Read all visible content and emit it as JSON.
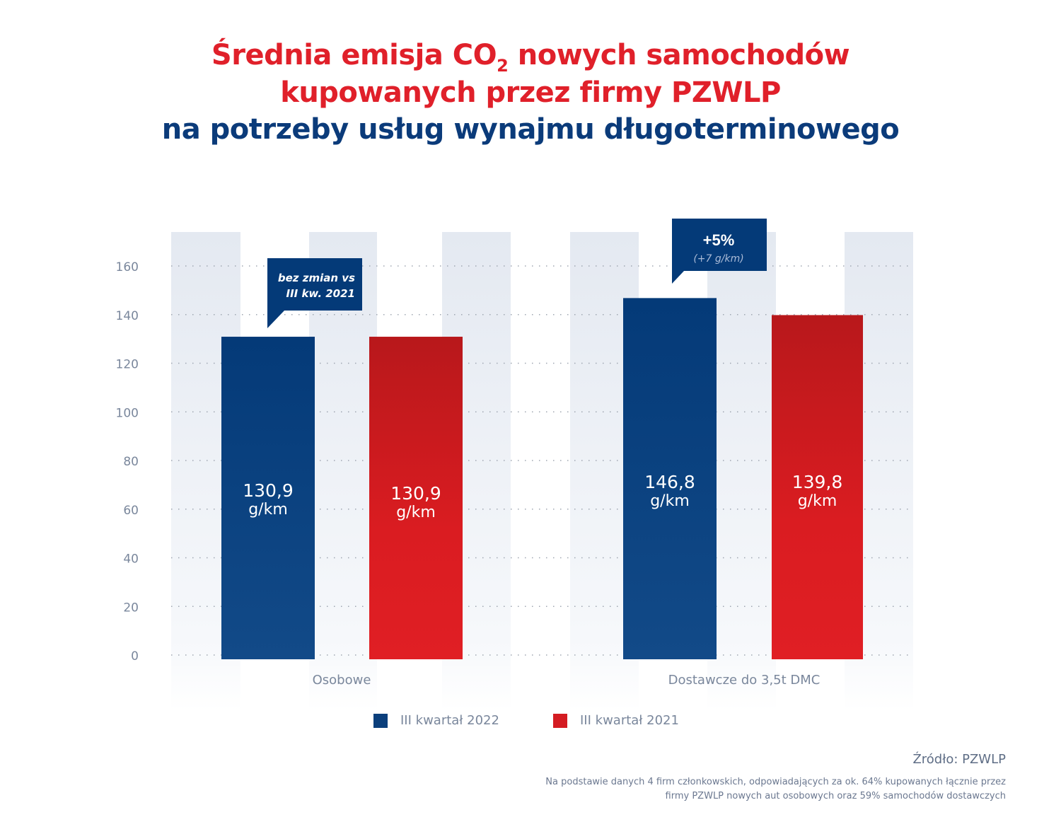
{
  "title": {
    "line1_before": "Średnia emisja CO",
    "line1_sub": "2",
    "line1_after": " nowych samochodów",
    "line2": "kupowanych przez firmy PZWLP",
    "line3": "na potrzeby usług wynajmu długoterminowego"
  },
  "colors": {
    "title_red": "#e0202a",
    "title_blue": "#0b3b7a",
    "series_2022": "#0b3f7c",
    "series_2021": "#d41c22",
    "stripe": "#e4e9f1",
    "axis_text": "#7a879c"
  },
  "chart_data": {
    "type": "bar",
    "title": "Średnia emisja CO2 nowych samochodów kupowanych przez firmy PZWLP na potrzeby usług wynajmu długoterminowego",
    "categories": [
      "Osobowe",
      "Dostawcze do 3,5t DMC"
    ],
    "series": [
      {
        "name": "III kwartał 2022",
        "values": [
          130.9,
          146.8
        ],
        "labels": [
          "130,9",
          "146,8"
        ]
      },
      {
        "name": "III kwartał 2021",
        "values": [
          130.9,
          139.8
        ],
        "labels": [
          "130,9",
          "139,8"
        ]
      }
    ],
    "unit_label": "g/km",
    "xlabel": "",
    "ylabel": "",
    "ylim": [
      0,
      160
    ],
    "yticks": [
      "0",
      "20",
      "40",
      "60",
      "80",
      "100",
      "120",
      "140",
      "160"
    ],
    "ytick_values": [
      0,
      20,
      40,
      60,
      80,
      100,
      120,
      140,
      160
    ],
    "grid": "dotted horizontal",
    "legend_position": "bottom-center",
    "annotations": [
      {
        "category": "Osobowe",
        "series": "III kwartał 2022",
        "lines": [
          "bez zmian vs",
          "III kw. 2021"
        ]
      },
      {
        "category": "Dostawcze do 3,5t DMC",
        "series": "III kwartał 2022",
        "headline": "+5%",
        "detail": "(+7 g/km)"
      }
    ]
  },
  "legend": {
    "items": [
      {
        "label": "III kwartał 2022"
      },
      {
        "label": "III kwartał 2021"
      }
    ]
  },
  "footer": {
    "source": "Źródło: PZWLP",
    "note_line1": "Na podstawie danych 4 firm członkowskich, odpowiadających za ok. 64% kupowanych łącznie przez",
    "note_line2": "firmy PZWLP nowych aut osobowych oraz 59% samochodów dostawczych"
  }
}
